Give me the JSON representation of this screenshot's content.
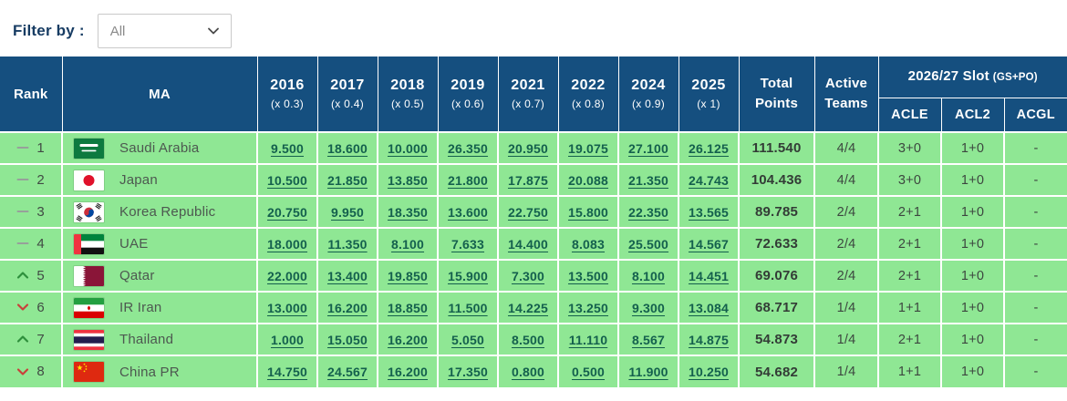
{
  "filter": {
    "label": "Filter by :",
    "value": "All",
    "chevron_icon": "chevron-down-icon"
  },
  "colors": {
    "header_bg": "#154F7F",
    "row_bg": "#8FE794",
    "score_link": "#14604D",
    "filter_label": "#173C63",
    "total_text": "#333C36",
    "body_text": "#3E4942",
    "country_text": "#4D5850",
    "trend_up": "#2E8F3C",
    "trend_down": "#C9403A",
    "trend_same": "#97A09A"
  },
  "table": {
    "headers": {
      "rank": "Rank",
      "ma": "MA",
      "total_line1": "Total",
      "total_line2": "Points",
      "active_line1": "Active",
      "active_line2": "Teams",
      "slot_title": "2026/27 Slot",
      "slot_suffix": "(GS+PO)",
      "slot_cols": [
        "ACLE",
        "ACL2",
        "ACGL"
      ]
    },
    "years": [
      {
        "year": "2016",
        "multiplier": "(x 0.3)"
      },
      {
        "year": "2017",
        "multiplier": "(x 0.4)"
      },
      {
        "year": "2018",
        "multiplier": "(x 0.5)"
      },
      {
        "year": "2019",
        "multiplier": "(x 0.6)"
      },
      {
        "year": "2021",
        "multiplier": "(x 0.7)"
      },
      {
        "year": "2022",
        "multiplier": "(x 0.8)"
      },
      {
        "year": "2024",
        "multiplier": "(x 0.9)"
      },
      {
        "year": "2025",
        "multiplier": "(x 1)"
      }
    ],
    "rows": [
      {
        "trend": "same",
        "rank": "1",
        "flag": "saudi-arabia",
        "name": "Saudi Arabia",
        "scores": [
          "9.500",
          "18.600",
          "10.000",
          "26.350",
          "20.950",
          "19.075",
          "27.100",
          "26.125"
        ],
        "total": "111.540",
        "active": "4/4",
        "acle": "3+0",
        "acl2": "1+0",
        "acgl": "-"
      },
      {
        "trend": "same",
        "rank": "2",
        "flag": "japan",
        "name": "Japan",
        "scores": [
          "10.500",
          "21.850",
          "13.850",
          "21.800",
          "17.875",
          "20.088",
          "21.350",
          "24.743"
        ],
        "total": "104.436",
        "active": "4/4",
        "acle": "3+0",
        "acl2": "1+0",
        "acgl": "-"
      },
      {
        "trend": "same",
        "rank": "3",
        "flag": "korea-republic",
        "name": "Korea Republic",
        "scores": [
          "20.750",
          "9.950",
          "18.350",
          "13.600",
          "22.750",
          "15.800",
          "22.350",
          "13.565"
        ],
        "total": "89.785",
        "active": "2/4",
        "acle": "2+1",
        "acl2": "1+0",
        "acgl": "-"
      },
      {
        "trend": "same",
        "rank": "4",
        "flag": "uae",
        "name": "UAE",
        "scores": [
          "18.000",
          "11.350",
          "8.100",
          "7.633",
          "14.400",
          "8.083",
          "25.500",
          "14.567"
        ],
        "total": "72.633",
        "active": "2/4",
        "acle": "2+1",
        "acl2": "1+0",
        "acgl": "-"
      },
      {
        "trend": "up",
        "rank": "5",
        "flag": "qatar",
        "name": "Qatar",
        "scores": [
          "22.000",
          "13.400",
          "19.850",
          "15.900",
          "7.300",
          "13.500",
          "8.100",
          "14.451"
        ],
        "total": "69.076",
        "active": "2/4",
        "acle": "2+1",
        "acl2": "1+0",
        "acgl": "-"
      },
      {
        "trend": "down",
        "rank": "6",
        "flag": "ir-iran",
        "name": "IR Iran",
        "scores": [
          "13.000",
          "16.200",
          "18.850",
          "11.500",
          "14.225",
          "13.250",
          "9.300",
          "13.084"
        ],
        "total": "68.717",
        "active": "1/4",
        "acle": "1+1",
        "acl2": "1+0",
        "acgl": "-"
      },
      {
        "trend": "up",
        "rank": "7",
        "flag": "thailand",
        "name": "Thailand",
        "scores": [
          "1.000",
          "15.050",
          "16.200",
          "5.050",
          "8.500",
          "11.110",
          "8.567",
          "14.875"
        ],
        "total": "54.873",
        "active": "1/4",
        "acle": "2+1",
        "acl2": "1+0",
        "acgl": "-"
      },
      {
        "trend": "down",
        "rank": "8",
        "flag": "china-pr",
        "name": "China PR",
        "scores": [
          "14.750",
          "24.567",
          "16.200",
          "17.350",
          "0.800",
          "0.500",
          "11.900",
          "10.250"
        ],
        "total": "54.682",
        "active": "1/4",
        "acle": "1+1",
        "acl2": "1+0",
        "acgl": "-"
      }
    ]
  }
}
